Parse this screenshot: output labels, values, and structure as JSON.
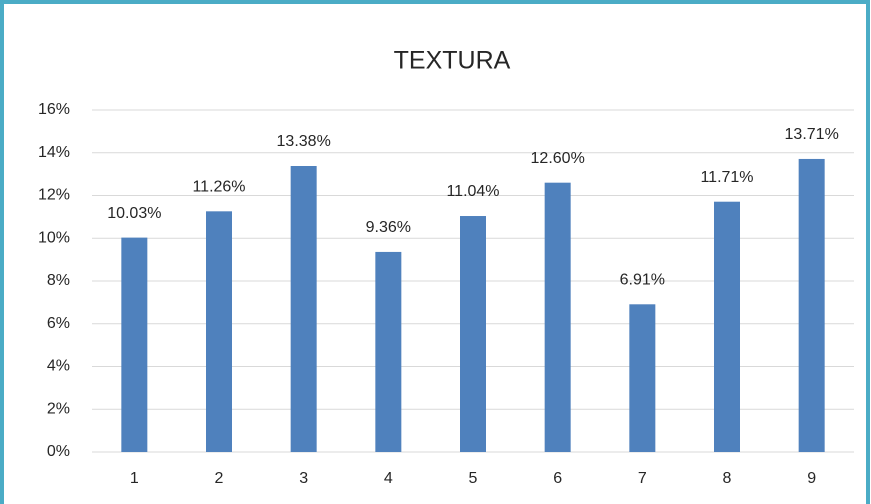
{
  "chart_data": {
    "type": "bar",
    "title": "TEXTURA",
    "categories": [
      "1",
      "2",
      "3",
      "4",
      "5",
      "6",
      "7",
      "8",
      "9"
    ],
    "values": [
      10.03,
      11.26,
      13.38,
      9.36,
      11.04,
      12.6,
      6.91,
      11.71,
      13.71
    ],
    "value_labels": [
      "10.03%",
      "11.26%",
      "13.38%",
      "9.36%",
      "11.04%",
      "12.60%",
      "6.91%",
      "11.71%",
      "13.71%"
    ],
    "color": "#4f81bd",
    "ylim": [
      0,
      16
    ],
    "yticks": [
      {
        "value": 0,
        "label": "0%"
      },
      {
        "value": 2,
        "label": "2%"
      },
      {
        "value": 4,
        "label": "4%"
      },
      {
        "value": 6,
        "label": "6%"
      },
      {
        "value": 8,
        "label": "8%"
      },
      {
        "value": 10,
        "label": "10%"
      },
      {
        "value": 12,
        "label": "12%"
      },
      {
        "value": 14,
        "label": "14%"
      },
      {
        "value": 16,
        "label": "16%"
      }
    ],
    "grid": true
  }
}
